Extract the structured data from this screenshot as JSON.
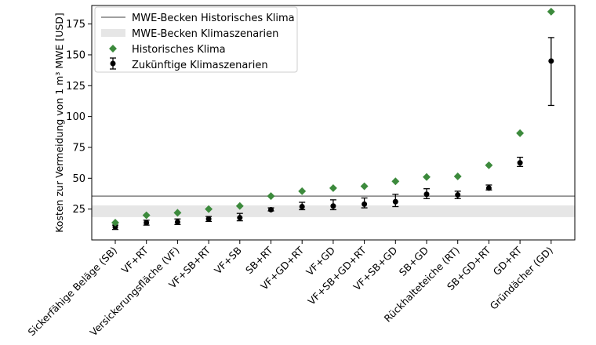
{
  "chart_data": {
    "type": "scatter",
    "ylabel": "Kosten zur Vermeidung von 1 m³ MWE [USD]",
    "xlabel": "",
    "ylim": [
      0,
      190
    ],
    "yticks": [
      25,
      50,
      75,
      100,
      125,
      150,
      175
    ],
    "categories": [
      "Sickerfähige Beläge (SB)",
      "VF+RT",
      "Versickerungsfläche (VF)",
      "VF+SB+RT",
      "VF+SB",
      "SB+RT",
      "VF+GD+RT",
      "VF+GD",
      "VF+SB+GD+RT",
      "VF+SB+GD",
      "SB+GD",
      "Rückhalteteiche (RT)",
      "SB+GD+RT",
      "GD+RT",
      "Gründächer (GD)"
    ],
    "series": [
      {
        "name": "Historisches Klima",
        "color": "#3c8a3c",
        "marker": "diamond",
        "values": [
          14,
          20,
          22,
          25,
          27.5,
          35.5,
          39.5,
          42,
          43.5,
          47.5,
          51,
          51.5,
          60.5,
          86.5,
          185
        ]
      },
      {
        "name": "Zukünftige Klimaszenarien",
        "color": "#000000",
        "marker": "circle-errorbar",
        "values": [
          10.5,
          14,
          14.5,
          17,
          18,
          24.5,
          27,
          27.5,
          29,
          31,
          37,
          36.5,
          42,
          62.5,
          145
        ],
        "err_low": [
          8.5,
          12,
          12.5,
          15,
          15.5,
          23.5,
          24.5,
          24.5,
          26,
          27,
          33.5,
          33.5,
          40.5,
          59.5,
          109
        ],
        "err_high": [
          12,
          16,
          17,
          19,
          21.5,
          26,
          30.5,
          32.5,
          34,
          37,
          41.5,
          39.5,
          44.5,
          67,
          164
        ]
      }
    ],
    "reference_line": {
      "name": "MWE-Becken Historisches Klima",
      "value": 35.5,
      "color": "#808080"
    },
    "reference_band": {
      "name": "MWE-Becken Klimaszenarien",
      "range": [
        18.5,
        28
      ],
      "color": "#e6e6e6"
    },
    "legend_position": "top-left",
    "grid": false
  }
}
